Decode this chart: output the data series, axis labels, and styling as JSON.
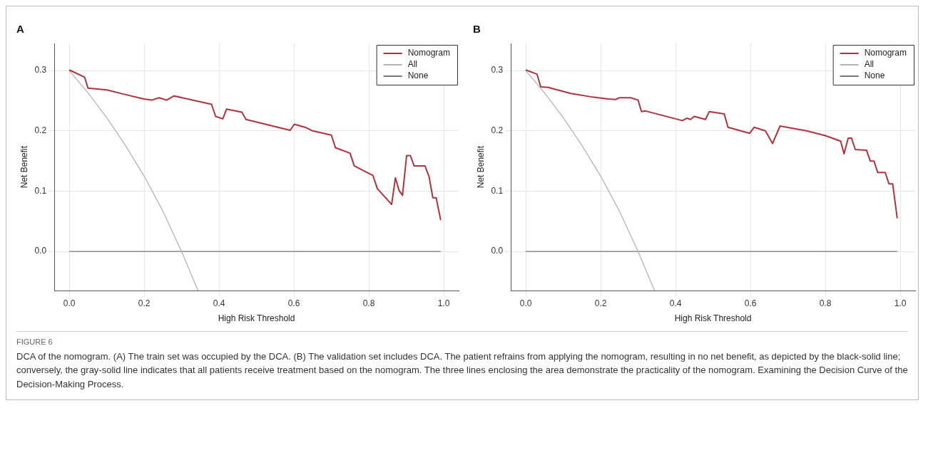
{
  "chart_data": [
    {
      "type": "line",
      "title": "A",
      "xlabel": "High Risk Threshold",
      "ylabel": "Net Benefit",
      "xlim": [
        -0.04,
        1.04
      ],
      "ylim": [
        -0.065,
        0.345
      ],
      "xticks": [
        {
          "value": 0,
          "label": "0.0"
        },
        {
          "value": 0.2,
          "label": "0.2"
        },
        {
          "value": 0.4,
          "label": "0.4"
        },
        {
          "value": 0.6,
          "label": "0.6"
        },
        {
          "value": 0.8,
          "label": "0.8"
        },
        {
          "value": 1,
          "label": "1.0"
        }
      ],
      "yticks": [
        {
          "value": 0,
          "label": "0.0"
        },
        0.1,
        0.2,
        0.3
      ],
      "grid": true,
      "legend": "top right",
      "marker": "none",
      "line_style": "solid",
      "series": [
        {
          "name": "Nomogram",
          "color": "#b2323c",
          "x": [
            0,
            0.041,
            0.05,
            0.1,
            0.145,
            0.199,
            0.22,
            0.24,
            0.26,
            0.28,
            0.38,
            0.391,
            0.41,
            0.42,
            0.461,
            0.472,
            0.59,
            0.601,
            0.63,
            0.65,
            0.7,
            0.711,
            0.75,
            0.761,
            0.811,
            0.823,
            0.861,
            0.871,
            0.881,
            0.89,
            0.901,
            0.911,
            0.921,
            0.95,
            0.961,
            0.971,
            0.98,
            0.992
          ],
          "values": [
            0.301,
            0.289,
            0.271,
            0.268,
            0.261,
            0.253,
            0.251,
            0.255,
            0.251,
            0.258,
            0.244,
            0.224,
            0.22,
            0.236,
            0.231,
            0.219,
            0.201,
            0.211,
            0.206,
            0.2,
            0.193,
            0.172,
            0.163,
            0.142,
            0.126,
            0.104,
            0.078,
            0.122,
            0.101,
            0.093,
            0.159,
            0.159,
            0.142,
            0.142,
            0.124,
            0.089,
            0.089,
            0.052
          ]
        },
        {
          "name": "All",
          "color": "#b4b4b4",
          "x": [
            0,
            0.05,
            0.1,
            0.15,
            0.2,
            0.25,
            0.3,
            0.344
          ],
          "values": [
            0.3,
            0.263,
            0.222,
            0.176,
            0.125,
            0.067,
            0,
            -0.065
          ]
        },
        {
          "name": "None",
          "color": "#777777",
          "x": [
            0,
            0.992
          ],
          "values": [
            0,
            0
          ]
        }
      ],
      "annotations": [
        "FIGURE 6",
        "DCA of the nomogram. (A) The train set was occupied by the DCA. (B) The validation set includes DCA. The patient refrains from applying the nomogram, resulting in no net benefit, as depicted by the black-solid line; conversely, the gray-solid line indicates that all patients receive treatment based on the nomogram. The three lines enclosing the area demonstrate the practicality of the nomogram. Examining the Decision Curve of the Decision-Making Process."
      ]
    },
    {
      "type": "line",
      "title": "B",
      "xlabel": "High Risk Threshold",
      "ylabel": "Net Benefit",
      "xlim": [
        -0.04,
        1.04
      ],
      "ylim": [
        -0.065,
        0.345
      ],
      "xticks": [
        {
          "value": 0,
          "label": "0.0"
        },
        {
          "value": 0.2,
          "label": "0.2"
        },
        {
          "value": 0.4,
          "label": "0.4"
        },
        {
          "value": 0.6,
          "label": "0.6"
        },
        {
          "value": 0.8,
          "label": "0.8"
        },
        {
          "value": 1,
          "label": "1.0"
        }
      ],
      "yticks": [
        {
          "value": 0,
          "label": "0.0"
        },
        0.1,
        0.2,
        0.3
      ],
      "grid": true,
      "legend": "top right",
      "marker": "none",
      "line_style": "solid",
      "series": [
        {
          "name": "Nomogram",
          "color": "#b2323c",
          "x": [
            0,
            0.03,
            0.04,
            0.06,
            0.12,
            0.179,
            0.22,
            0.24,
            0.25,
            0.28,
            0.3,
            0.309,
            0.32,
            0.418,
            0.43,
            0.44,
            0.45,
            0.48,
            0.49,
            0.53,
            0.54,
            0.598,
            0.61,
            0.64,
            0.659,
            0.679,
            0.75,
            0.8,
            0.841,
            0.85,
            0.861,
            0.87,
            0.88,
            0.91,
            0.92,
            0.93,
            0.94,
            0.96,
            0.97,
            0.98,
            0.992
          ],
          "values": [
            0.301,
            0.294,
            0.273,
            0.272,
            0.262,
            0.256,
            0.253,
            0.252,
            0.255,
            0.255,
            0.251,
            0.232,
            0.233,
            0.217,
            0.221,
            0.219,
            0.224,
            0.219,
            0.232,
            0.228,
            0.206,
            0.196,
            0.206,
            0.2,
            0.179,
            0.208,
            0.2,
            0.192,
            0.183,
            0.162,
            0.188,
            0.188,
            0.169,
            0.168,
            0.15,
            0.15,
            0.131,
            0.131,
            0.112,
            0.112,
            0.055
          ]
        },
        {
          "name": "All",
          "color": "#b4b4b4",
          "x": [
            0,
            0.05,
            0.1,
            0.15,
            0.2,
            0.25,
            0.3,
            0.344
          ],
          "values": [
            0.3,
            0.263,
            0.222,
            0.176,
            0.125,
            0.067,
            0,
            -0.065
          ]
        },
        {
          "name": "None",
          "color": "#777777",
          "x": [
            0,
            0.992
          ],
          "values": [
            0,
            0
          ]
        }
      ]
    }
  ]
}
